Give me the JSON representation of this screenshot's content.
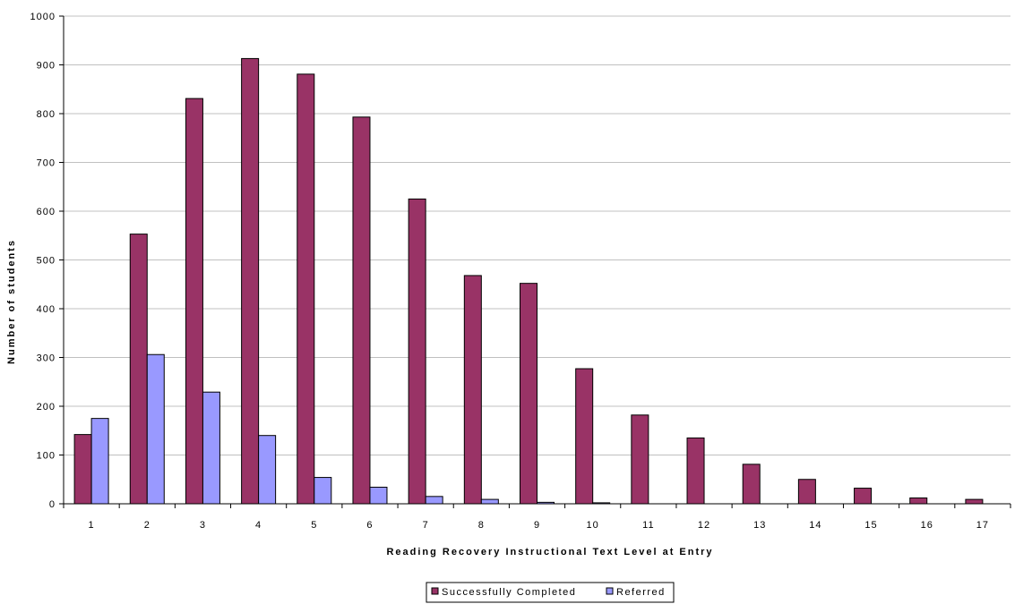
{
  "chart_data": {
    "type": "bar",
    "title": "",
    "xlabel": "Reading Recovery Instructional Text Level at Entry",
    "ylabel": "Number of students",
    "ylim": [
      0,
      1000
    ],
    "yticks": [
      0,
      100,
      200,
      300,
      400,
      500,
      600,
      700,
      800,
      900,
      1000
    ],
    "grid": true,
    "legend_position": "bottom",
    "categories": [
      "1",
      "2",
      "3",
      "4",
      "5",
      "6",
      "7",
      "8",
      "9",
      "10",
      "11",
      "12",
      "13",
      "14",
      "15",
      "16",
      "17"
    ],
    "series": [
      {
        "name": "Successfully Completed",
        "color": "#993366",
        "values": [
          142,
          553,
          831,
          913,
          881,
          793,
          625,
          468,
          452,
          277,
          182,
          135,
          81,
          50,
          32,
          12,
          9
        ]
      },
      {
        "name": "Referred",
        "color": "#9999ff",
        "values": [
          175,
          306,
          229,
          140,
          54,
          34,
          15,
          9,
          3,
          2,
          0,
          0,
          0,
          0,
          0,
          0,
          0
        ]
      }
    ]
  }
}
